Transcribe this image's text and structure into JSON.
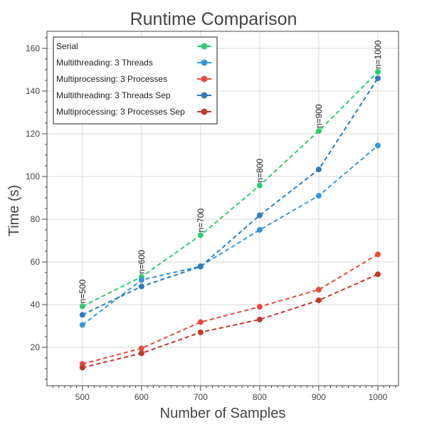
{
  "chart_data": {
    "type": "line",
    "title": "Runtime Comparison",
    "xlabel": "Number of Samples",
    "ylabel": "Time (s)",
    "xlim": [
      440,
      1035
    ],
    "ylim": [
      2,
      168
    ],
    "xticks": [
      500,
      600,
      700,
      800,
      900,
      1000
    ],
    "yticks": [
      20,
      40,
      60,
      80,
      100,
      120,
      140,
      160
    ],
    "grid": true,
    "legend_position": "top-left",
    "x": [
      500,
      600,
      700,
      800,
      900,
      1000
    ],
    "series": [
      {
        "name": "Serial",
        "color": "#2ecc71",
        "values": [
          39.2,
          53.0,
          72.5,
          95.8,
          121.3,
          149.0
        ]
      },
      {
        "name": "Multithreading: 3 Threads",
        "color": "#3498db",
        "values": [
          30.5,
          51.5,
          58.0,
          75.0,
          91.0,
          114.5
        ]
      },
      {
        "name": "Multiprocessing: 3 Processes",
        "color": "#e74c3c",
        "values": [
          12.2,
          19.5,
          31.8,
          39.0,
          47.0,
          63.5
        ]
      },
      {
        "name": "Multithreading: 3 Threads Sep",
        "color": "#2e7bbd",
        "values": [
          35.2,
          48.5,
          57.8,
          81.8,
          103.3,
          146.0
        ]
      },
      {
        "name": "Multiprocessing: 3 Processes Sep",
        "color": "#c0392b",
        "values": [
          10.5,
          17.2,
          27.0,
          33.0,
          42.0,
          54.2
        ]
      }
    ],
    "annotations": [
      {
        "text": "n=500",
        "x": 500,
        "y": 39.2
      },
      {
        "text": "n=600",
        "x": 600,
        "y": 53.0
      },
      {
        "text": "n=700",
        "x": 700,
        "y": 72.5
      },
      {
        "text": "n=800",
        "x": 800,
        "y": 95.8
      },
      {
        "text": "n=900",
        "x": 900,
        "y": 121.3
      },
      {
        "text": "n=1000",
        "x": 1000,
        "y": 149.0
      }
    ]
  }
}
